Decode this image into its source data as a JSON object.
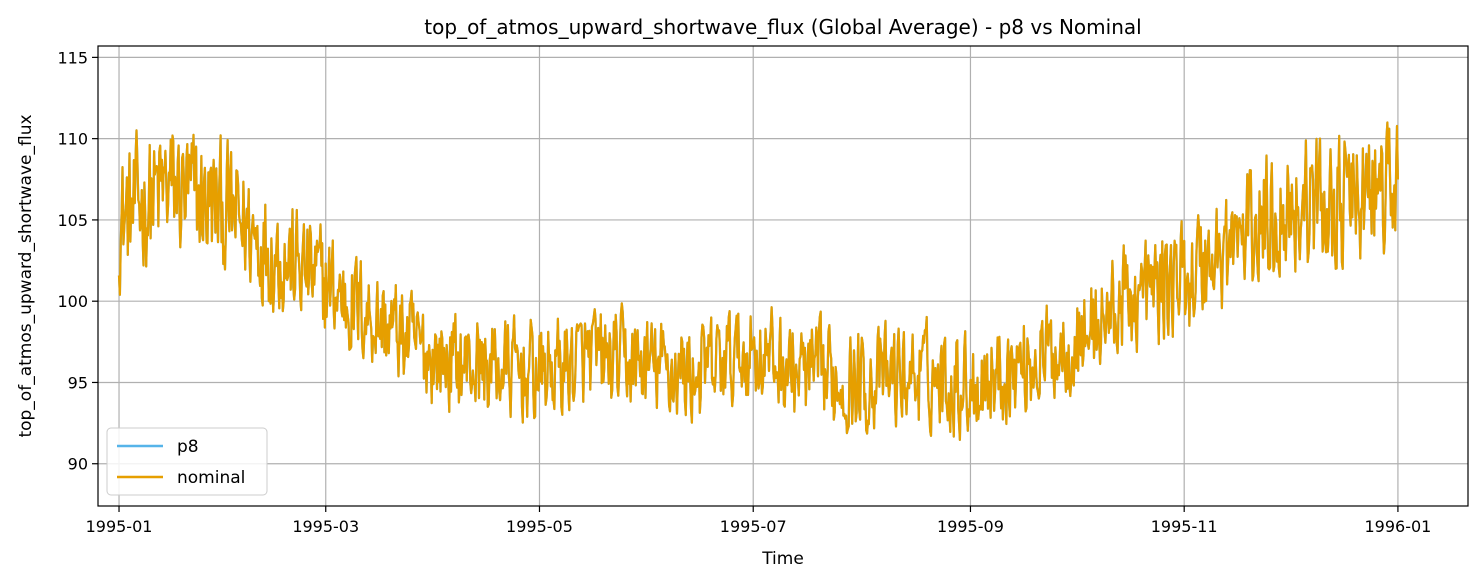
{
  "chart_data": {
    "type": "line",
    "title": "top_of_atmos_upward_shortwave_flux (Global Average) - p8 vs Nominal",
    "xlabel": "Time",
    "ylabel": "top_of_atmos_upward_shortwave_flux",
    "xlim": [
      "1994-12-26",
      "1996-01-21"
    ],
    "ylim": [
      87.4,
      115.7
    ],
    "x_ticks": [
      "1995-01",
      "1995-03",
      "1995-05",
      "1995-07",
      "1995-09",
      "1995-11",
      "1996-01"
    ],
    "y_ticks": [
      90,
      95,
      100,
      105,
      110,
      115
    ],
    "grid": true,
    "legend_position": "lower-left",
    "series": [
      {
        "name": "p8",
        "color": "#56b4e9",
        "x": [
          "1995-01-01",
          "1995-01-15",
          "1995-02-01",
          "1995-02-15",
          "1995-03-01",
          "1995-03-15",
          "1995-04-01",
          "1995-04-15",
          "1995-05-01",
          "1995-05-15",
          "1995-06-01",
          "1995-06-15",
          "1995-07-01",
          "1995-07-15",
          "1995-08-01",
          "1995-08-15",
          "1995-09-01",
          "1995-09-15",
          "1995-10-01",
          "1995-10-15",
          "1995-11-01",
          "1995-11-15",
          "1995-12-01",
          "1995-12-15",
          "1996-01-01"
        ],
        "y": [
          105,
          107,
          105.5,
          103,
          101,
          99,
          96.5,
          96,
          95.5,
          96.5,
          96,
          95.5,
          97,
          95.5,
          95,
          95.5,
          95,
          96,
          97.5,
          100,
          101.5,
          103.5,
          106,
          106,
          107
        ]
      },
      {
        "name": "nominal",
        "color": "#e69f00",
        "x": [
          "1995-01-01",
          "1995-01-15",
          "1995-02-01",
          "1995-02-15",
          "1995-03-01",
          "1995-03-15",
          "1995-04-01",
          "1995-04-15",
          "1995-05-01",
          "1995-05-15",
          "1995-06-01",
          "1995-06-15",
          "1995-07-01",
          "1995-07-15",
          "1995-08-01",
          "1995-08-15",
          "1995-09-01",
          "1995-09-15",
          "1995-10-01",
          "1995-10-15",
          "1995-11-01",
          "1995-11-15",
          "1995-12-01",
          "1995-12-15",
          "1996-01-01"
        ],
        "y": [
          105,
          107,
          105.5,
          103,
          101,
          99,
          96.5,
          96,
          95.5,
          96.5,
          96,
          95.5,
          97,
          95.5,
          95,
          95.5,
          95,
          96,
          97.5,
          100,
          101.5,
          103.5,
          106,
          106,
          107
        ]
      }
    ]
  }
}
